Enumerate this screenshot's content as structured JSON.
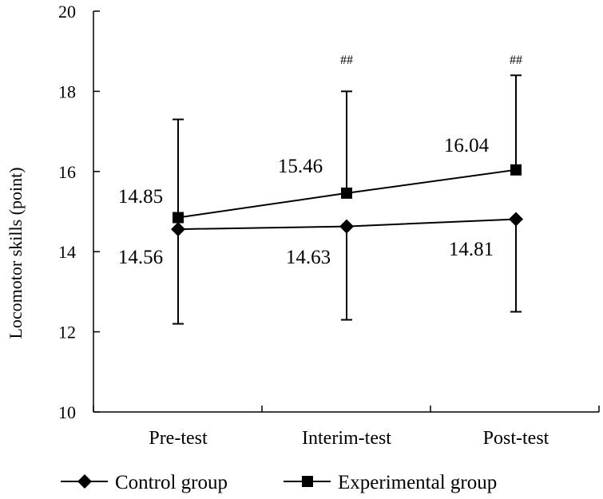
{
  "chart_data": {
    "type": "line",
    "title": "",
    "xlabel": "",
    "ylabel": "Locomotor skills (point)",
    "categories": [
      "Pre-test",
      "Interim-test",
      "Post-test"
    ],
    "ylim": [
      10,
      20
    ],
    "yticks": [
      10,
      12,
      14,
      16,
      18,
      20
    ],
    "grid": false,
    "legend_position": "bottom",
    "series": [
      {
        "name": "Control group",
        "marker": "diamond",
        "values": [
          14.56,
          14.63,
          14.81
        ],
        "labels": [
          "14.56",
          "14.63",
          "14.81"
        ],
        "error_lower": [
          12.2,
          12.3,
          12.5
        ],
        "error_upper": null
      },
      {
        "name": "Experimental group",
        "marker": "square",
        "values": [
          14.85,
          15.46,
          16.04
        ],
        "labels": [
          "14.85",
          "15.46",
          "16.04"
        ],
        "error_lower": null,
        "error_upper": [
          17.3,
          18.0,
          18.4
        ]
      }
    ],
    "annotations": [
      "",
      "##",
      "##"
    ]
  }
}
